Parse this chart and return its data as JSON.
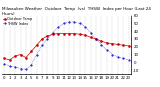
{
  "title": "Milwaukee Weather  Outdoor  Temp  (vs)  THSW  Index per Hour (Last 24 Hours)",
  "hours": [
    0,
    1,
    2,
    3,
    4,
    5,
    6,
    7,
    8,
    9,
    10,
    11,
    12,
    13,
    14,
    15,
    16,
    17,
    18,
    19,
    20,
    21,
    22,
    23
  ],
  "temp": [
    5,
    3,
    8,
    10,
    6,
    14,
    22,
    30,
    34,
    36,
    37,
    37,
    37,
    37,
    36,
    35,
    32,
    30,
    27,
    25,
    24,
    23,
    22,
    21
  ],
  "thsw": [
    -2,
    -5,
    -6,
    -8,
    -9,
    -3,
    10,
    22,
    30,
    38,
    45,
    50,
    52,
    52,
    50,
    46,
    38,
    30,
    22,
    16,
    10,
    7,
    5,
    3
  ],
  "temp_color": "#cc0000",
  "thsw_color": "#0000cc",
  "bg_color": "#ffffff",
  "grid_color": "#999999",
  "ylim": [
    -15,
    60
  ],
  "ytick_right_labels": [
    "60",
    "50",
    "40",
    "30",
    "20",
    "10",
    "0",
    "-10"
  ],
  "ytick_right_vals": [
    60,
    50,
    40,
    30,
    20,
    10,
    0,
    -10
  ],
  "title_fontsize": 3.0,
  "tick_fontsize": 2.8,
  "legend_fontsize": 2.5
}
